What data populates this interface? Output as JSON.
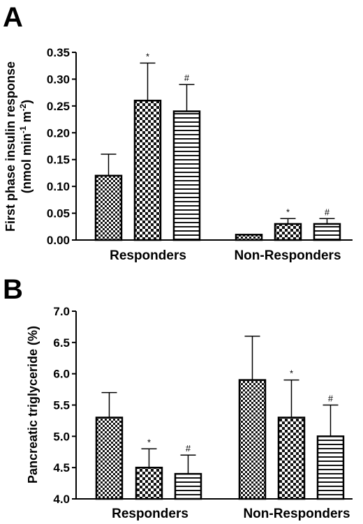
{
  "figure": {
    "panels": [
      "A",
      "B"
    ]
  },
  "chart_data": [
    {
      "panel": "A",
      "type": "bar",
      "ylabel_line1": "First phase insulin response",
      "ylabel_line2_main": "(nmol min",
      "ylabel_line2_exp1": "-1",
      "ylabel_line2_mid": " m",
      "ylabel_line2_exp2": "-2",
      "ylabel_line2_end": ")",
      "ylim": [
        0,
        0.35
      ],
      "yticks": [
        "0.00",
        "0.05",
        "0.10",
        "0.15",
        "0.20",
        "0.25",
        "0.30",
        "0.35"
      ],
      "yticks_values": [
        0,
        0.05,
        0.1,
        0.15,
        0.2,
        0.25,
        0.3,
        0.35
      ],
      "categories": [
        "Responders",
        "Non-Responders"
      ],
      "bars": [
        {
          "group": 0,
          "pattern": "check-small",
          "value": 0.12,
          "error": 0.04,
          "sig": ""
        },
        {
          "group": 0,
          "pattern": "check-large",
          "value": 0.26,
          "error": 0.07,
          "sig": "*"
        },
        {
          "group": 0,
          "pattern": "hlines",
          "value": 0.24,
          "error": 0.05,
          "sig": "#"
        },
        {
          "group": 1,
          "pattern": "check-small",
          "value": 0.01,
          "error": 0.0,
          "sig": ""
        },
        {
          "group": 1,
          "pattern": "check-large",
          "value": 0.03,
          "error": 0.01,
          "sig": "*"
        },
        {
          "group": 1,
          "pattern": "hlines",
          "value": 0.03,
          "error": 0.01,
          "sig": "#"
        }
      ]
    },
    {
      "panel": "B",
      "type": "bar",
      "ylabel": "Pancreatic triglyceride (%)",
      "ylim": [
        4.0,
        7.0
      ],
      "yticks": [
        "4.0",
        "4.5",
        "5.0",
        "5.5",
        "6.0",
        "6.5",
        "7.0"
      ],
      "yticks_values": [
        4.0,
        4.5,
        5.0,
        5.5,
        6.0,
        6.5,
        7.0
      ],
      "categories": [
        "Responders",
        "Non-Responders"
      ],
      "bars": [
        {
          "group": 0,
          "pattern": "check-small",
          "value": 5.3,
          "error": 0.4,
          "sig": ""
        },
        {
          "group": 0,
          "pattern": "check-large",
          "value": 4.5,
          "error": 0.3,
          "sig": "*"
        },
        {
          "group": 0,
          "pattern": "hlines",
          "value": 4.4,
          "error": 0.3,
          "sig": "#"
        },
        {
          "group": 1,
          "pattern": "check-small",
          "value": 5.9,
          "error": 0.7,
          "sig": ""
        },
        {
          "group": 1,
          "pattern": "check-large",
          "value": 5.3,
          "error": 0.6,
          "sig": "*"
        },
        {
          "group": 1,
          "pattern": "hlines",
          "value": 5.0,
          "error": 0.5,
          "sig": "#"
        }
      ]
    }
  ]
}
